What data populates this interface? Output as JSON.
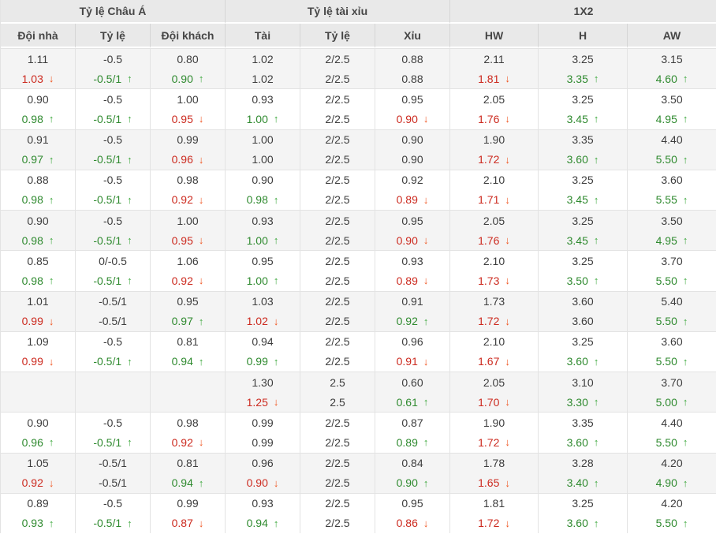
{
  "table": {
    "groups": [
      {
        "label": "Tỷ lệ Châu Á"
      },
      {
        "label": "Tỷ lệ tài xỉu"
      },
      {
        "label": "1X2"
      }
    ],
    "columns": [
      "Đội nhà",
      "Tỷ lệ",
      "Đội khách",
      "Tài",
      "Tỷ lệ",
      "Xỉu",
      "HW",
      "H",
      "AW"
    ],
    "colors": {
      "header_bg": "#e9e9e9",
      "row_alt_bg": "#f4f4f4",
      "up_text": "#2f8a2f",
      "up_arrow": "#3fa93f",
      "down_text": "#cc2a1f",
      "down_arrow": "#f05723"
    },
    "icons": {
      "up_arrow": "↑",
      "down_arrow": "↓"
    },
    "rows": [
      {
        "cells": [
          {
            "top": "1.11",
            "bottom": "1.03",
            "trend": "down"
          },
          {
            "top": "-0.5",
            "bottom": "-0.5/1",
            "trend": "up"
          },
          {
            "top": "0.80",
            "bottom": "0.90",
            "trend": "up"
          },
          {
            "top": "1.02",
            "bottom": "1.02",
            "trend": "none"
          },
          {
            "top": "2/2.5",
            "bottom": "2/2.5",
            "trend": "none"
          },
          {
            "top": "0.88",
            "bottom": "0.88",
            "trend": "none"
          },
          {
            "top": "2.11",
            "bottom": "1.81",
            "trend": "down"
          },
          {
            "top": "3.25",
            "bottom": "3.35",
            "trend": "up"
          },
          {
            "top": "3.15",
            "bottom": "4.60",
            "trend": "up"
          }
        ]
      },
      {
        "cells": [
          {
            "top": "0.90",
            "bottom": "0.98",
            "trend": "up"
          },
          {
            "top": "-0.5",
            "bottom": "-0.5/1",
            "trend": "up"
          },
          {
            "top": "1.00",
            "bottom": "0.95",
            "trend": "down"
          },
          {
            "top": "0.93",
            "bottom": "1.00",
            "trend": "up"
          },
          {
            "top": "2/2.5",
            "bottom": "2/2.5",
            "trend": "none"
          },
          {
            "top": "0.95",
            "bottom": "0.90",
            "trend": "down"
          },
          {
            "top": "2.05",
            "bottom": "1.76",
            "trend": "down"
          },
          {
            "top": "3.25",
            "bottom": "3.45",
            "trend": "up"
          },
          {
            "top": "3.50",
            "bottom": "4.95",
            "trend": "up"
          }
        ]
      },
      {
        "cells": [
          {
            "top": "0.91",
            "bottom": "0.97",
            "trend": "up"
          },
          {
            "top": "-0.5",
            "bottom": "-0.5/1",
            "trend": "up"
          },
          {
            "top": "0.99",
            "bottom": "0.96",
            "trend": "down"
          },
          {
            "top": "1.00",
            "bottom": "1.00",
            "trend": "none"
          },
          {
            "top": "2/2.5",
            "bottom": "2/2.5",
            "trend": "none"
          },
          {
            "top": "0.90",
            "bottom": "0.90",
            "trend": "none"
          },
          {
            "top": "1.90",
            "bottom": "1.72",
            "trend": "down"
          },
          {
            "top": "3.35",
            "bottom": "3.60",
            "trend": "up"
          },
          {
            "top": "4.40",
            "bottom": "5.50",
            "trend": "up"
          }
        ]
      },
      {
        "cells": [
          {
            "top": "0.88",
            "bottom": "0.98",
            "trend": "up"
          },
          {
            "top": "-0.5",
            "bottom": "-0.5/1",
            "trend": "up"
          },
          {
            "top": "0.98",
            "bottom": "0.92",
            "trend": "down"
          },
          {
            "top": "0.90",
            "bottom": "0.98",
            "trend": "up"
          },
          {
            "top": "2/2.5",
            "bottom": "2/2.5",
            "trend": "none"
          },
          {
            "top": "0.92",
            "bottom": "0.89",
            "trend": "down"
          },
          {
            "top": "2.10",
            "bottom": "1.71",
            "trend": "down"
          },
          {
            "top": "3.25",
            "bottom": "3.45",
            "trend": "up"
          },
          {
            "top": "3.60",
            "bottom": "5.55",
            "trend": "up"
          }
        ]
      },
      {
        "cells": [
          {
            "top": "0.90",
            "bottom": "0.98",
            "trend": "up"
          },
          {
            "top": "-0.5",
            "bottom": "-0.5/1",
            "trend": "up"
          },
          {
            "top": "1.00",
            "bottom": "0.95",
            "trend": "down"
          },
          {
            "top": "0.93",
            "bottom": "1.00",
            "trend": "up"
          },
          {
            "top": "2/2.5",
            "bottom": "2/2.5",
            "trend": "none"
          },
          {
            "top": "0.95",
            "bottom": "0.90",
            "trend": "down"
          },
          {
            "top": "2.05",
            "bottom": "1.76",
            "trend": "down"
          },
          {
            "top": "3.25",
            "bottom": "3.45",
            "trend": "up"
          },
          {
            "top": "3.50",
            "bottom": "4.95",
            "trend": "up"
          }
        ]
      },
      {
        "cells": [
          {
            "top": "0.85",
            "bottom": "0.98",
            "trend": "up"
          },
          {
            "top": "0/-0.5",
            "bottom": "-0.5/1",
            "trend": "up"
          },
          {
            "top": "1.06",
            "bottom": "0.92",
            "trend": "down"
          },
          {
            "top": "0.95",
            "bottom": "1.00",
            "trend": "up"
          },
          {
            "top": "2/2.5",
            "bottom": "2/2.5",
            "trend": "none"
          },
          {
            "top": "0.93",
            "bottom": "0.89",
            "trend": "down"
          },
          {
            "top": "2.10",
            "bottom": "1.73",
            "trend": "down"
          },
          {
            "top": "3.25",
            "bottom": "3.50",
            "trend": "up"
          },
          {
            "top": "3.70",
            "bottom": "5.50",
            "trend": "up"
          }
        ]
      },
      {
        "cells": [
          {
            "top": "1.01",
            "bottom": "0.99",
            "trend": "down"
          },
          {
            "top": "-0.5/1",
            "bottom": "-0.5/1",
            "trend": "none"
          },
          {
            "top": "0.95",
            "bottom": "0.97",
            "trend": "up"
          },
          {
            "top": "1.03",
            "bottom": "1.02",
            "trend": "down"
          },
          {
            "top": "2/2.5",
            "bottom": "2/2.5",
            "trend": "none"
          },
          {
            "top": "0.91",
            "bottom": "0.92",
            "trend": "up"
          },
          {
            "top": "1.73",
            "bottom": "1.72",
            "trend": "down"
          },
          {
            "top": "3.60",
            "bottom": "3.60",
            "trend": "none"
          },
          {
            "top": "5.40",
            "bottom": "5.50",
            "trend": "up"
          }
        ]
      },
      {
        "cells": [
          {
            "top": "1.09",
            "bottom": "0.99",
            "trend": "down"
          },
          {
            "top": "-0.5",
            "bottom": "-0.5/1",
            "trend": "up"
          },
          {
            "top": "0.81",
            "bottom": "0.94",
            "trend": "up"
          },
          {
            "top": "0.94",
            "bottom": "0.99",
            "trend": "up"
          },
          {
            "top": "2/2.5",
            "bottom": "2/2.5",
            "trend": "none"
          },
          {
            "top": "0.96",
            "bottom": "0.91",
            "trend": "down"
          },
          {
            "top": "2.10",
            "bottom": "1.67",
            "trend": "down"
          },
          {
            "top": "3.25",
            "bottom": "3.60",
            "trend": "up"
          },
          {
            "top": "3.60",
            "bottom": "5.50",
            "trend": "up"
          }
        ]
      },
      {
        "cells": [
          {
            "top": "",
            "bottom": "",
            "trend": "none"
          },
          {
            "top": "",
            "bottom": "",
            "trend": "none"
          },
          {
            "top": "",
            "bottom": "",
            "trend": "none"
          },
          {
            "top": "1.30",
            "bottom": "1.25",
            "trend": "down"
          },
          {
            "top": "2.5",
            "bottom": "2.5",
            "trend": "none"
          },
          {
            "top": "0.60",
            "bottom": "0.61",
            "trend": "up"
          },
          {
            "top": "2.05",
            "bottom": "1.70",
            "trend": "down"
          },
          {
            "top": "3.10",
            "bottom": "3.30",
            "trend": "up"
          },
          {
            "top": "3.70",
            "bottom": "5.00",
            "trend": "up"
          }
        ]
      },
      {
        "cells": [
          {
            "top": "0.90",
            "bottom": "0.96",
            "trend": "up"
          },
          {
            "top": "-0.5",
            "bottom": "-0.5/1",
            "trend": "up"
          },
          {
            "top": "0.98",
            "bottom": "0.92",
            "trend": "down"
          },
          {
            "top": "0.99",
            "bottom": "0.99",
            "trend": "none"
          },
          {
            "top": "2/2.5",
            "bottom": "2/2.5",
            "trend": "none"
          },
          {
            "top": "0.87",
            "bottom": "0.89",
            "trend": "up"
          },
          {
            "top": "1.90",
            "bottom": "1.72",
            "trend": "down"
          },
          {
            "top": "3.35",
            "bottom": "3.60",
            "trend": "up"
          },
          {
            "top": "4.40",
            "bottom": "5.50",
            "trend": "up"
          }
        ]
      },
      {
        "cells": [
          {
            "top": "1.05",
            "bottom": "0.92",
            "trend": "down"
          },
          {
            "top": "-0.5/1",
            "bottom": "-0.5/1",
            "trend": "none"
          },
          {
            "top": "0.81",
            "bottom": "0.94",
            "trend": "up"
          },
          {
            "top": "0.96",
            "bottom": "0.90",
            "trend": "down"
          },
          {
            "top": "2/2.5",
            "bottom": "2/2.5",
            "trend": "none"
          },
          {
            "top": "0.84",
            "bottom": "0.90",
            "trend": "up"
          },
          {
            "top": "1.78",
            "bottom": "1.65",
            "trend": "down"
          },
          {
            "top": "3.28",
            "bottom": "3.40",
            "trend": "up"
          },
          {
            "top": "4.20",
            "bottom": "4.90",
            "trend": "up"
          }
        ]
      },
      {
        "cells": [
          {
            "top": "0.89",
            "bottom": "0.93",
            "trend": "up"
          },
          {
            "top": "-0.5",
            "bottom": "-0.5/1",
            "trend": "up"
          },
          {
            "top": "0.99",
            "bottom": "0.87",
            "trend": "down"
          },
          {
            "top": "0.93",
            "bottom": "0.94",
            "trend": "up"
          },
          {
            "top": "2/2.5",
            "bottom": "2/2.5",
            "trend": "none"
          },
          {
            "top": "0.95",
            "bottom": "0.86",
            "trend": "down"
          },
          {
            "top": "1.81",
            "bottom": "1.72",
            "trend": "down"
          },
          {
            "top": "3.25",
            "bottom": "3.60",
            "trend": "up"
          },
          {
            "top": "4.20",
            "bottom": "5.50",
            "trend": "up"
          }
        ]
      }
    ]
  }
}
